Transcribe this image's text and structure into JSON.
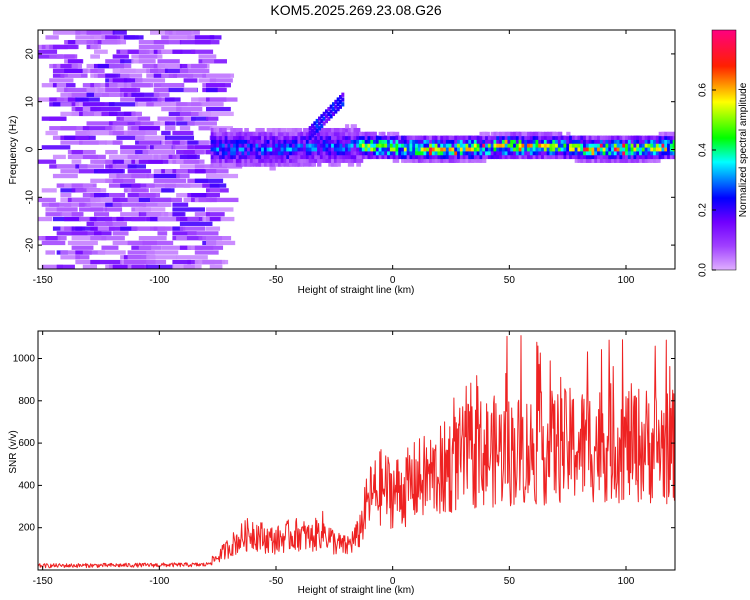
{
  "chart_data": [
    {
      "type": "heatmap",
      "title": "KOM5.2025.269.23.08.G26",
      "xlabel": "Height of straight line (km)",
      "ylabel": "Frequency (Hz)",
      "xlim": [
        -152,
        121
      ],
      "ylim": [
        -25,
        25
      ],
      "xticks": [
        -150,
        -100,
        -50,
        0,
        50,
        100
      ],
      "yticks": [
        -20,
        -10,
        0,
        10,
        20
      ],
      "colorbar": {
        "label": "Normalized spectral amplitude",
        "range": [
          0,
          0.8
        ],
        "ticks": [
          0.0,
          0.2,
          0.4,
          0.6
        ],
        "colormap": [
          "#e0b0ff",
          "#8800ff",
          "#0000ff",
          "#00ffff",
          "#00ff00",
          "#ffff00",
          "#ff0000",
          "#ff0080"
        ]
      },
      "features": [
        {
          "name": "scattered noise",
          "x_range": [
            -152,
            -78
          ],
          "freq_range": [
            -25,
            25
          ],
          "amplitude": "0.0-0.1"
        },
        {
          "name": "signal trace",
          "x_range": [
            -78,
            121
          ],
          "center_freq": 0,
          "spread_hz": 3,
          "peak_amplitude": 0.8
        },
        {
          "name": "upward arc",
          "x_range": [
            -35,
            -22
          ],
          "freq_range": [
            3,
            11
          ]
        }
      ]
    },
    {
      "type": "line",
      "xlabel": "Height of straight line (km)",
      "ylabel": "SNR (v/v)",
      "xlim": [
        -152,
        121
      ],
      "ylim": [
        0,
        1130
      ],
      "xticks": [
        -150,
        -100,
        -50,
        0,
        50,
        100
      ],
      "yticks": [
        200,
        400,
        600,
        800,
        1000
      ],
      "color": "#ee2222",
      "series": [
        {
          "name": "SNR",
          "x_range": [
            -152,
            121
          ],
          "points": [
            [
              -152,
              20
            ],
            [
              -80,
              25
            ],
            [
              -75,
              60
            ],
            [
              -70,
              110
            ],
            [
              -65,
              150
            ],
            [
              -60,
              180
            ],
            [
              -55,
              150
            ],
            [
              -50,
              140
            ],
            [
              -45,
              160
            ],
            [
              -40,
              170
            ],
            [
              -35,
              150
            ],
            [
              -30,
              190
            ],
            [
              -25,
              130
            ],
            [
              -20,
              110
            ],
            [
              -15,
              160
            ],
            [
              -10,
              340
            ],
            [
              -5,
              390
            ],
            [
              0,
              370
            ],
            [
              5,
              380
            ],
            [
              10,
              420
            ],
            [
              15,
              440
            ],
            [
              20,
              460
            ],
            [
              25,
              500
            ],
            [
              30,
              530
            ],
            [
              40,
              560
            ],
            [
              50,
              560
            ],
            [
              60,
              570
            ],
            [
              70,
              580
            ],
            [
              80,
              590
            ],
            [
              90,
              600
            ],
            [
              100,
              600
            ],
            [
              110,
              590
            ],
            [
              121,
              580
            ]
          ]
        }
      ]
    }
  ]
}
